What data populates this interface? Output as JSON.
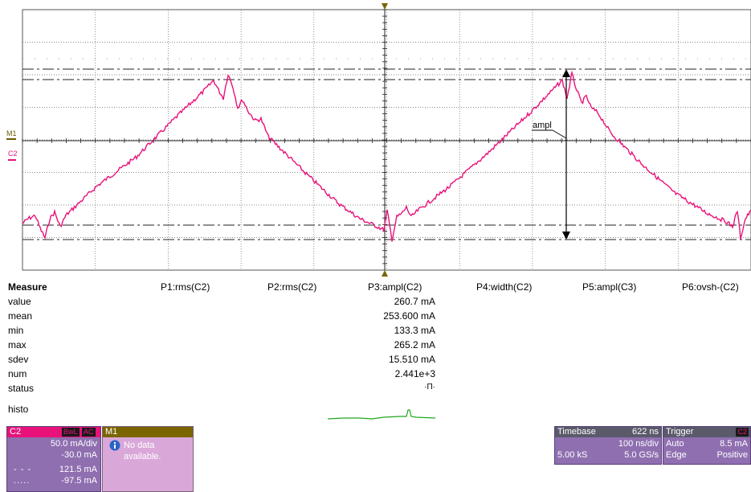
{
  "scope": {
    "trace_color": "#e8127a",
    "m1_label": "M1",
    "c2_label": "C2",
    "annotation": "ampl"
  },
  "measure": {
    "title": "Measure",
    "columns": [
      "P1:rms(C2)",
      "P2:rms(C2)",
      "P3:ampl(C2)",
      "P4:width(C2)",
      "P5:ampl(C3)",
      "P6:ovsh-(C2)"
    ],
    "rows": [
      {
        "label": "value",
        "p3": "260.7 mA"
      },
      {
        "label": "mean",
        "p3": "253.600 mA"
      },
      {
        "label": "min",
        "p3": "133.3 mA"
      },
      {
        "label": "max",
        "p3": "265.2 mA"
      },
      {
        "label": "sdev",
        "p3": "15.510 mA"
      },
      {
        "label": "num",
        "p3": "2.441e+3"
      },
      {
        "label": "status",
        "p3": "·Π·"
      }
    ],
    "histo_label": "histo"
  },
  "c2": {
    "label": "C2",
    "bwl": "BwL",
    "coupling": "AC",
    "scale": "50.0 mA/div",
    "offset": "-30.0 mA",
    "cursor1_value": "121.5 mA",
    "cursor2_value": "-97.5 mA",
    "color": "#e8127a"
  },
  "m1": {
    "label": "M1",
    "message": "No data available."
  },
  "timebase": {
    "label": "Timebase",
    "delay": "622 ns",
    "per_div": "100 ns/div",
    "samples": "5.00 kS",
    "rate": "5.0 GS/s"
  },
  "trigger": {
    "label": "Trigger",
    "channel": "C2",
    "mode": "Auto",
    "level": "8.5 mA",
    "type": "Edge",
    "slope": "Positive"
  }
}
